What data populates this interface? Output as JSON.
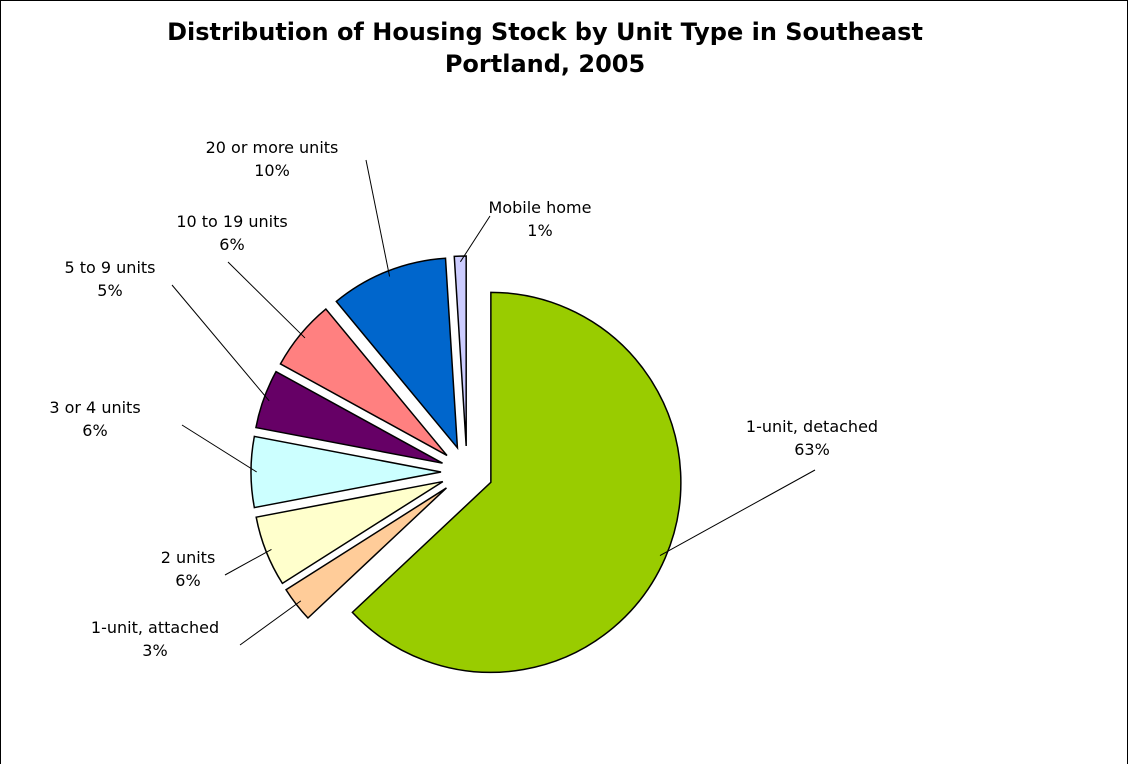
{
  "chart_data": {
    "type": "pie",
    "title": "Distribution of Housing Stock by Unit Type in Southeast Portland, 2005",
    "categories": [
      "1-unit, detached",
      "1-unit, attached",
      "2 units",
      "3 or 4 units",
      "5 to 9 units",
      "10 to 19 units",
      "20 or more units",
      "Mobile home"
    ],
    "values": [
      63,
      3,
      6,
      6,
      5,
      6,
      10,
      1
    ],
    "value_labels": [
      "63%",
      "3%",
      "6%",
      "6%",
      "5%",
      "6%",
      "10%",
      "1%"
    ],
    "colors": [
      "#99cc00",
      "#ffcc99",
      "#ffffcc",
      "#ccffff",
      "#660066",
      "#ff8080",
      "#0066cc",
      "#ccccff"
    ]
  }
}
